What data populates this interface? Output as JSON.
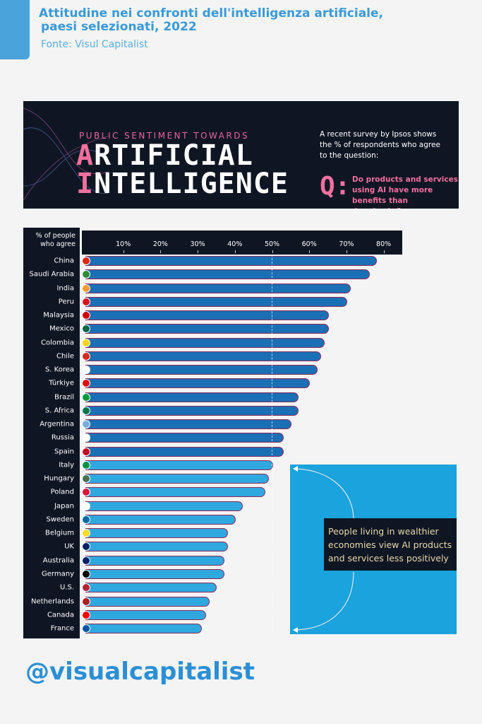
{
  "header": {
    "title_line1": "Attitudine nei confronti dell'intelligenza artificiale,",
    "title_line2": "paesi selezionati, 2022",
    "source": "Fonte: Visul Capitalist"
  },
  "banner": {
    "kicker": "PUBLIC SENTIMENT TOWARDS",
    "word1_first": "A",
    "word1_rest": "RTIFICIAL",
    "word2_first": "I",
    "word2_rest": "NTELLIGENCE",
    "intro": "A recent survey by Ipsos shows the % of respondents who agree to the question:",
    "q": "Q:",
    "question": "Do products and services using AI have more benefits than drawbacks?"
  },
  "annotation": "People living in wealthier economies view AI products and services less positively",
  "footer": {
    "handle": "@visualcapitalist"
  },
  "colors": {
    "high": "#1a6fb5",
    "low": "#2fa8e0",
    "dark": "#0f1623",
    "pink": "#f0709e"
  },
  "chart_data": {
    "type": "bar",
    "orientation": "horizontal",
    "title": "Attitudine nei confronti dell'intelligenza artificiale, paesi selezionati, 2022",
    "ylabel": "% of people who agree",
    "xlim": [
      0,
      85
    ],
    "ticks": [
      "10%",
      "20%",
      "30%",
      "40%",
      "50%",
      "60%",
      "70%",
      "80%"
    ],
    "tick_values": [
      10,
      20,
      30,
      40,
      50,
      60,
      70,
      80
    ],
    "reference_line": 50,
    "categories": [
      "China",
      "Saudi Arabia",
      "India",
      "Peru",
      "Malaysia",
      "Mexico",
      "Colombia",
      "Chile",
      "S. Korea",
      "Türkiye",
      "Brazil",
      "S. Africa",
      "Argentina",
      "Russia",
      "Spain",
      "Italy",
      "Hungary",
      "Poland",
      "Japan",
      "Sweden",
      "Belgium",
      "UK",
      "Australia",
      "Germany",
      "U.S.",
      "Netherlands",
      "Canada",
      "France"
    ],
    "values": [
      78,
      76,
      71,
      70,
      65,
      65,
      64,
      63,
      62,
      60,
      57,
      57,
      55,
      53,
      53,
      50,
      49,
      48,
      42,
      40,
      38,
      38,
      37,
      37,
      35,
      33,
      32,
      31
    ],
    "flag_colors": [
      "#de2910",
      "#2e8b3d",
      "#ff9933",
      "#d91023",
      "#cc0001",
      "#006847",
      "#fcd116",
      "#d52b1e",
      "#ffffff",
      "#e30a17",
      "#009c3b",
      "#007749",
      "#74acdf",
      "#ffffff",
      "#c60b1e",
      "#009246",
      "#477050",
      "#dc143c",
      "#ffffff",
      "#006aa7",
      "#fdda24",
      "#012169",
      "#012169",
      "#000000",
      "#b22234",
      "#ae1c28",
      "#ff0000",
      "#0055a4"
    ]
  }
}
